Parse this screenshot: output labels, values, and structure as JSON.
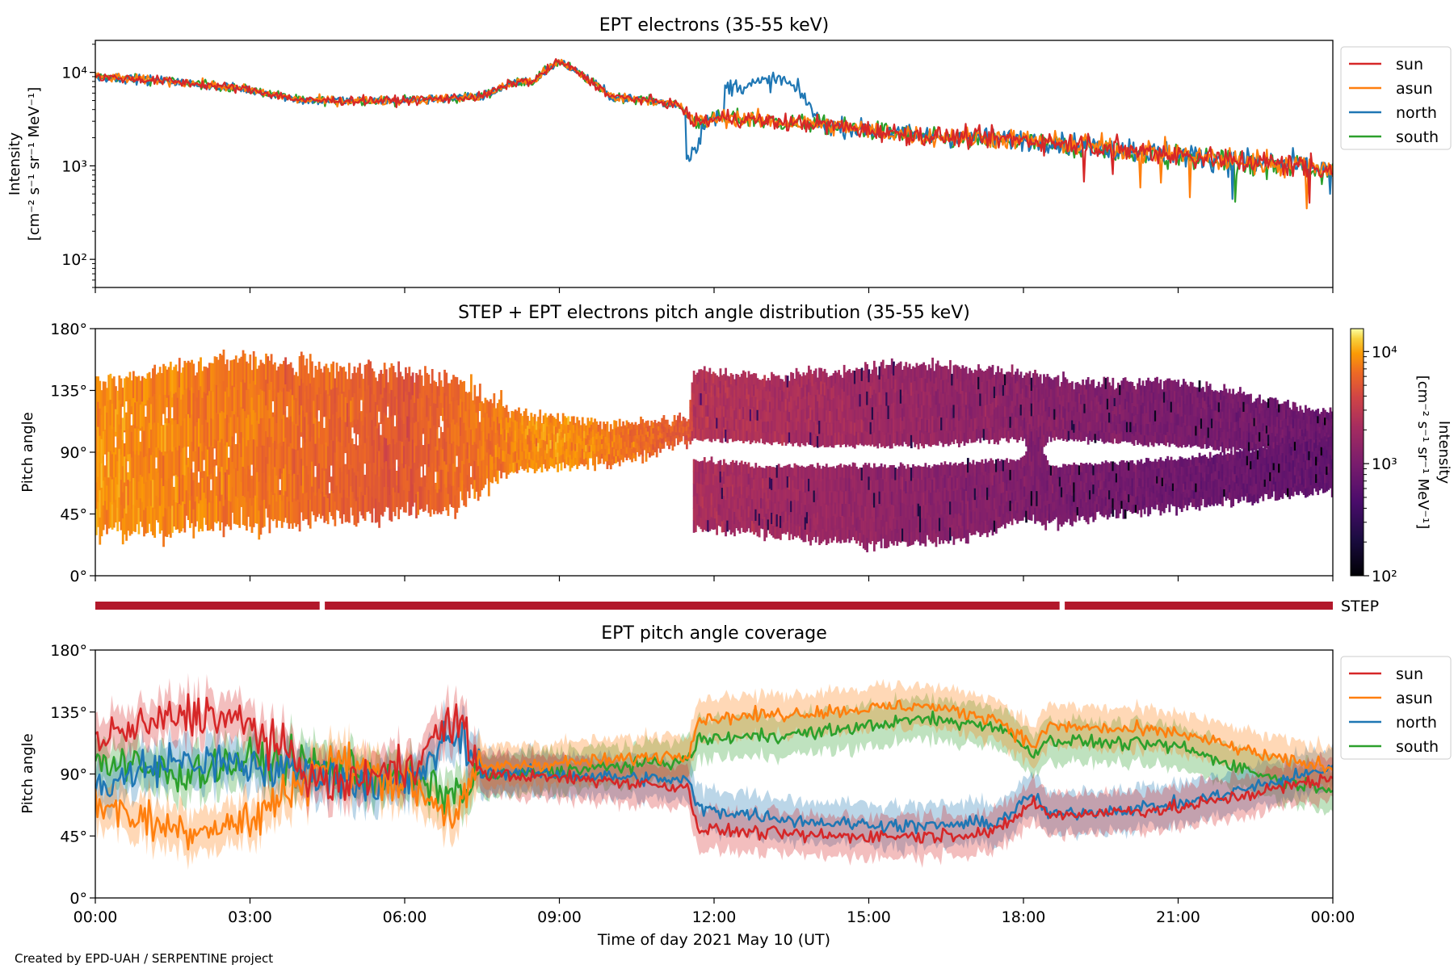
{
  "footer": "Created by EPD-UAH / SERPENTINE project",
  "colors": {
    "sun": "#d62728",
    "asun": "#ff7f0e",
    "north": "#1f77b4",
    "south": "#2ca02c",
    "step_bar": "#b2182b"
  },
  "chart_data": [
    {
      "type": "line",
      "title": "EPT electrons (35-55 keV)",
      "ylabel_line1": "Intensity",
      "ylabel_line2": "[cm⁻² s⁻¹ sr⁻¹ MeV⁻¹]",
      "yscale": "log",
      "ylim": [
        50,
        22000
      ],
      "yticks": [
        "10²",
        "10³",
        "10⁴"
      ],
      "xlim_hours": [
        0,
        24
      ],
      "legend": {
        "placement": "outside-right",
        "entries": [
          "sun",
          "asun",
          "north",
          "south"
        ]
      },
      "series_keyframes": {
        "base": [
          [
            0,
            9000
          ],
          [
            1.5,
            8000
          ],
          [
            3,
            6500
          ],
          [
            4,
            5000
          ],
          [
            6,
            5000
          ],
          [
            7.5,
            5500
          ],
          [
            8.2,
            8000
          ],
          [
            8.5,
            8000
          ],
          [
            9,
            13000
          ],
          [
            9.6,
            8000
          ],
          [
            10,
            5500
          ],
          [
            10.5,
            5200
          ],
          [
            11.3,
            4500
          ],
          [
            11.6,
            2900
          ],
          [
            12.3,
            3300
          ],
          [
            13,
            3000
          ],
          [
            14,
            2800
          ],
          [
            15,
            2400
          ],
          [
            16,
            2100
          ],
          [
            18,
            1900
          ],
          [
            20,
            1500
          ],
          [
            22,
            1150
          ],
          [
            24,
            950
          ]
        ],
        "north_bump": [
          [
            12.3,
            7000
          ],
          [
            12.8,
            7500
          ],
          [
            13.3,
            8500
          ],
          [
            13.8,
            5000
          ],
          [
            14.0,
            3000
          ]
        ],
        "north_dip": [
          [
            11.6,
            1200
          ]
        ]
      }
    },
    {
      "type": "heatmap",
      "title": "STEP + EPT electrons pitch angle distribution (35-55 keV)",
      "ylabel": "Pitch angle",
      "ylim": [
        0,
        180
      ],
      "yticks": [
        "0°",
        "45°",
        "90°",
        "135°",
        "180°"
      ],
      "xlim_hours": [
        0,
        24
      ],
      "colorbar": {
        "label_line1": "Intensity",
        "label_line2": "[cm⁻² s⁻¹ sr⁻¹ MeV⁻¹]",
        "scale": "log",
        "range": [
          100,
          16000
        ],
        "ticks": [
          "10²",
          "10³",
          "10⁴"
        ],
        "colormap": "inferno"
      },
      "bands_keyframes": {
        "upper_top": [
          [
            0,
            140
          ],
          [
            2.5,
            160
          ],
          [
            5,
            150
          ],
          [
            7,
            145
          ],
          [
            8,
            120
          ],
          [
            10,
            110
          ],
          [
            11.5,
            115
          ],
          [
            11.6,
            150
          ],
          [
            13,
            145
          ],
          [
            16,
            155
          ],
          [
            18,
            148
          ],
          [
            19,
            140
          ],
          [
            21,
            142
          ],
          [
            24,
            118
          ]
        ],
        "upper_bottom": [
          [
            0,
            30
          ],
          [
            4,
            40
          ],
          [
            7,
            50
          ],
          [
            8,
            75
          ],
          [
            10.5,
            85
          ],
          [
            11.6,
            100
          ],
          [
            14,
            95
          ],
          [
            16,
            95
          ],
          [
            18,
            100
          ],
          [
            18.2,
            85
          ],
          [
            18.5,
            100
          ],
          [
            21,
            95
          ],
          [
            23,
            90
          ],
          [
            24,
            90
          ]
        ],
        "lower_top": [
          [
            11.6,
            85
          ],
          [
            13,
            80
          ],
          [
            16,
            80
          ],
          [
            18,
            85
          ],
          [
            18.2,
            110
          ],
          [
            18.5,
            80
          ],
          [
            21,
            85
          ],
          [
            23,
            95
          ],
          [
            24,
            100
          ]
        ],
        "lower_bottom": [
          [
            11.6,
            35
          ],
          [
            13,
            30
          ],
          [
            15,
            22
          ],
          [
            17,
            28
          ],
          [
            18,
            40
          ],
          [
            18.5,
            38
          ],
          [
            21,
            50
          ],
          [
            24,
            62
          ]
        ]
      },
      "intensity_keyframes": [
        [
          0,
          9000
        ],
        [
          6,
          5000
        ],
        [
          9,
          9000
        ],
        [
          11.5,
          5000
        ],
        [
          11.6,
          3000
        ],
        [
          16,
          1800
        ],
        [
          20,
          1200
        ],
        [
          24,
          900
        ]
      ]
    },
    {
      "type": "bar",
      "label": "STEP",
      "segments_hours": [
        [
          0,
          4.35
        ],
        [
          4.45,
          18.7
        ],
        [
          18.8,
          24
        ]
      ]
    },
    {
      "type": "area",
      "title": "EPT pitch angle coverage",
      "ylabel": "Pitch angle",
      "xlabel": "Time of day 2021 May 10 (UT)",
      "ylim": [
        0,
        180
      ],
      "yticks": [
        "0°",
        "45°",
        "90°",
        "135°",
        "180°"
      ],
      "xticks": [
        "00:00",
        "03:00",
        "06:00",
        "09:00",
        "12:00",
        "15:00",
        "18:00",
        "21:00",
        "00:00"
      ],
      "xlim_hours": [
        0,
        24
      ],
      "legend": {
        "placement": "outside-right",
        "entries": [
          "sun",
          "asun",
          "north",
          "south"
        ]
      },
      "series_keyframes": {
        "sun": [
          [
            0,
            115
          ],
          [
            2,
            135
          ],
          [
            3,
            125
          ],
          [
            4.5,
            80
          ],
          [
            6,
            95
          ],
          [
            7,
            130
          ],
          [
            7.5,
            90
          ],
          [
            10,
            85
          ],
          [
            11.5,
            80
          ],
          [
            11.7,
            50
          ],
          [
            14,
            45
          ],
          [
            16,
            45
          ],
          [
            17.5,
            48
          ],
          [
            18.2,
            70
          ],
          [
            18.5,
            60
          ],
          [
            21,
            65
          ],
          [
            23,
            80
          ],
          [
            24,
            88
          ]
        ],
        "asun": [
          [
            0,
            70
          ],
          [
            1.5,
            50
          ],
          [
            3,
            55
          ],
          [
            4.5,
            100
          ],
          [
            6,
            85
          ],
          [
            7,
            60
          ],
          [
            7.5,
            95
          ],
          [
            10,
            100
          ],
          [
            11.5,
            105
          ],
          [
            11.7,
            130
          ],
          [
            14,
            135
          ],
          [
            16,
            140
          ],
          [
            17.5,
            130
          ],
          [
            18.2,
            110
          ],
          [
            18.5,
            125
          ],
          [
            21,
            120
          ],
          [
            23,
            100
          ],
          [
            24,
            95
          ]
        ],
        "north": [
          [
            0,
            80
          ],
          [
            1.5,
            100
          ],
          [
            3,
            95
          ],
          [
            4.5,
            90
          ],
          [
            6,
            80
          ],
          [
            7,
            120
          ],
          [
            7.5,
            92
          ],
          [
            10,
            88
          ],
          [
            11.5,
            85
          ],
          [
            11.7,
            65
          ],
          [
            14,
            55
          ],
          [
            16,
            52
          ],
          [
            17.5,
            55
          ],
          [
            18.2,
            75
          ],
          [
            18.5,
            60
          ],
          [
            21,
            68
          ],
          [
            23,
            85
          ],
          [
            24,
            95
          ]
        ],
        "south": [
          [
            0,
            100
          ],
          [
            1.5,
            90
          ],
          [
            3,
            100
          ],
          [
            4.5,
            95
          ],
          [
            6,
            85
          ],
          [
            7,
            75
          ],
          [
            7.5,
            88
          ],
          [
            10,
            95
          ],
          [
            11.5,
            100
          ],
          [
            11.7,
            115
          ],
          [
            14,
            120
          ],
          [
            16,
            130
          ],
          [
            17.5,
            125
          ],
          [
            18.2,
            105
          ],
          [
            18.5,
            115
          ],
          [
            21,
            110
          ],
          [
            23,
            85
          ],
          [
            24,
            80
          ]
        ]
      },
      "band_halfwidth_deg": 15
    }
  ]
}
